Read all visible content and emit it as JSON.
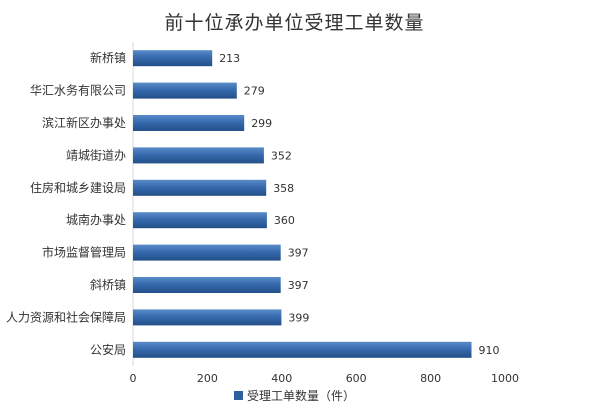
{
  "chart_data": {
    "type": "bar",
    "orientation": "horizontal",
    "title": "前十位承办单位受理工单数量",
    "categories": [
      "新桥镇",
      "华汇水务有限公司",
      "滨江新区办事处",
      "靖城街道办",
      "住房和城乡建设局",
      "城南办事处",
      "市场监督管理局",
      "斜桥镇",
      "人力资源和社会保障局",
      "公安局"
    ],
    "series": [
      {
        "name": "受理工单数量（件）",
        "values": [
          213,
          279,
          299,
          352,
          358,
          360,
          397,
          397,
          399,
          910
        ]
      }
    ],
    "xlim": [
      0,
      1000
    ],
    "xticks": [
      0,
      200,
      400,
      600,
      800,
      1000
    ],
    "grid": false,
    "legend": "bottom",
    "bar_color": "#2e5f9e"
  }
}
